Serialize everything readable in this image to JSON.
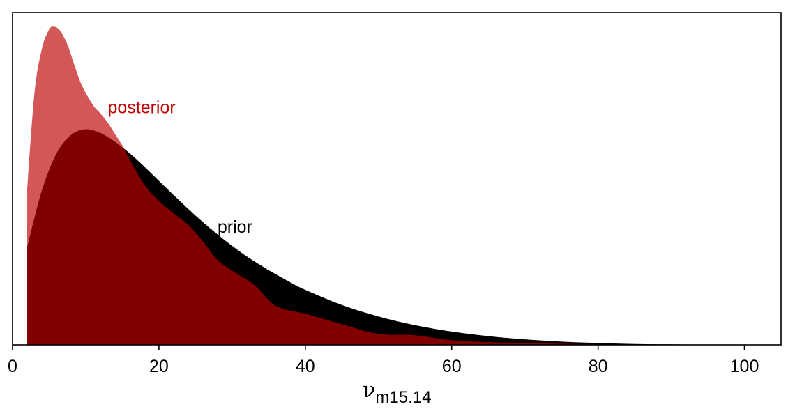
{
  "chart_data": {
    "type": "area",
    "xlabel": {
      "symbol": "ν",
      "subscript": "m15.14"
    },
    "xlim": [
      0,
      105
    ],
    "ylim": [
      0,
      0.0725
    ],
    "x_ticks": [
      0,
      20,
      40,
      60,
      80,
      100
    ],
    "x_tick_labels": [
      "0",
      "20",
      "40",
      "60",
      "80",
      "100"
    ],
    "y_axis_shown": false,
    "grid": false,
    "colors": {
      "prior": "#000000",
      "posterior_overlap": "#800000",
      "posterior": "#d45758",
      "posterior_label": "#c00000",
      "prior_label": "#000000"
    },
    "series": [
      {
        "name": "prior",
        "x": [
          2,
          4,
          6,
          8,
          10,
          12,
          14,
          16,
          18,
          20,
          22,
          25,
          28,
          30,
          32,
          35,
          38,
          40,
          45,
          50,
          55,
          60,
          65,
          70,
          75,
          80,
          85,
          90,
          95,
          100
        ],
        "y": [
          0.0212,
          0.0336,
          0.0417,
          0.0458,
          0.047,
          0.0462,
          0.0443,
          0.0418,
          0.0389,
          0.0358,
          0.0327,
          0.0282,
          0.0241,
          0.0216,
          0.0193,
          0.0163,
          0.0136,
          0.012,
          0.0087,
          0.0062,
          0.0043,
          0.0029,
          0.0019,
          0.0012,
          0.0007,
          0.0004,
          0.0002,
          0.0001,
          4e-05,
          2e-05
        ]
      },
      {
        "name": "posterior",
        "x": [
          2,
          3,
          4,
          5,
          5.7,
          6.5,
          7.5,
          8.5,
          9.5,
          11,
          12,
          13,
          14,
          15,
          16,
          18,
          20,
          22,
          24,
          26,
          28,
          30,
          33,
          36,
          40,
          45,
          50,
          55,
          60,
          65,
          70,
          80
        ],
        "y": [
          0.034,
          0.055,
          0.0645,
          0.0688,
          0.0694,
          0.0685,
          0.0655,
          0.0608,
          0.0565,
          0.0523,
          0.0505,
          0.0485,
          0.046,
          0.0435,
          0.0405,
          0.035,
          0.0314,
          0.0287,
          0.0262,
          0.0226,
          0.0185,
          0.0162,
          0.0131,
          0.0085,
          0.0068,
          0.0045,
          0.0024,
          0.0021,
          0.001,
          0.0006,
          0.0004,
          0.0001
        ]
      }
    ],
    "annotations": [
      {
        "text": "posterior",
        "x": 13,
        "y": 0.0505,
        "color": "#c00000"
      },
      {
        "text": "prior",
        "x": 28,
        "y": 0.0245,
        "color": "#000000"
      }
    ]
  }
}
